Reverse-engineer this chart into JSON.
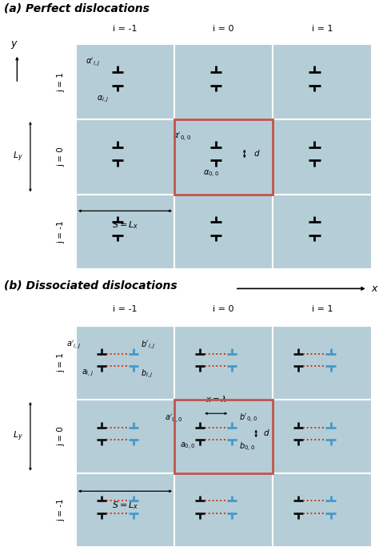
{
  "fig_width": 4.74,
  "fig_height": 6.93,
  "bg_color": "#b5cdd6",
  "grid_line_color": "#e8eef0",
  "highlight_box_color": "#c0524a",
  "title_a": "(a) Perfect dislocations",
  "title_b": "(b) Dissociated dislocations",
  "col_labels": [
    "i = -1",
    "i = 0",
    "i = 1"
  ],
  "row_labels_a": [
    "j = 1",
    "j = 0",
    "j = -1"
  ],
  "row_labels_b": [
    "j = 1",
    "j = 0",
    "j = -1"
  ],
  "black_color": "#111111",
  "blue_color": "#4499cc",
  "red_dot_color": "#cc2200",
  "white_color": "#ffffff"
}
